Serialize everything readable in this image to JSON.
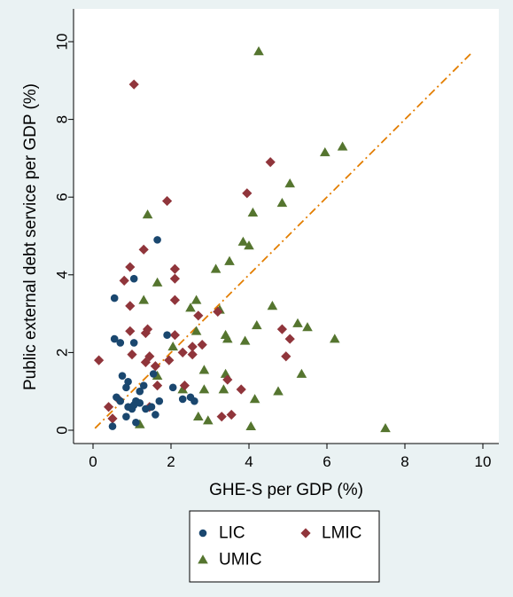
{
  "chart_data": {
    "type": "scatter",
    "title": "",
    "xlabel": "GHE-S per GDP (%)",
    "ylabel": "Public external debt service per GDP (%)",
    "xlim": [
      0,
      10
    ],
    "ylim": [
      0,
      10
    ],
    "xticks": [
      "0",
      "2",
      "4",
      "6",
      "8",
      "10"
    ],
    "yticks": [
      "0",
      "2",
      "4",
      "6",
      "8",
      "10"
    ],
    "grid": false,
    "legend_position": "bottom",
    "colors": {
      "page_background": "#eaf2f3",
      "plot_background": "#ffffff",
      "LIC": "#1a476f",
      "LMIC": "#90353b",
      "UMIC": "#55752f",
      "fit_line": "#e37e00"
    },
    "fit_line": {
      "x": [
        0.05,
        9.7
      ],
      "y": [
        0.05,
        9.7
      ],
      "style": "dash-dot"
    },
    "series": [
      {
        "name": "LIC",
        "marker": "circle",
        "points": [
          [
            0.5,
            0.1
          ],
          [
            0.6,
            0.85
          ],
          [
            0.7,
            0.75
          ],
          [
            0.55,
            2.35
          ],
          [
            0.7,
            2.25
          ],
          [
            0.55,
            3.4
          ],
          [
            0.75,
            1.4
          ],
          [
            0.9,
            1.25
          ],
          [
            0.85,
            1.1
          ],
          [
            0.85,
            0.35
          ],
          [
            0.9,
            0.6
          ],
          [
            1.0,
            0.55
          ],
          [
            1.05,
            0.65
          ],
          [
            1.1,
            0.2
          ],
          [
            1.1,
            0.75
          ],
          [
            1.2,
            0.7
          ],
          [
            1.05,
            2.25
          ],
          [
            1.05,
            3.9
          ],
          [
            1.2,
            1.0
          ],
          [
            1.3,
            1.15
          ],
          [
            1.35,
            0.55
          ],
          [
            1.5,
            0.6
          ],
          [
            1.55,
            1.45
          ],
          [
            1.6,
            0.4
          ],
          [
            1.7,
            0.75
          ],
          [
            1.65,
            4.9
          ],
          [
            1.9,
            2.45
          ],
          [
            2.05,
            1.1
          ],
          [
            2.3,
            0.8
          ],
          [
            2.5,
            0.85
          ],
          [
            2.6,
            0.75
          ]
        ]
      },
      {
        "name": "LMIC",
        "marker": "diamond",
        "points": [
          [
            0.15,
            1.8
          ],
          [
            0.4,
            0.6
          ],
          [
            0.5,
            0.3
          ],
          [
            0.65,
            0.8
          ],
          [
            0.8,
            3.85
          ],
          [
            0.95,
            4.2
          ],
          [
            0.95,
            3.2
          ],
          [
            0.95,
            2.55
          ],
          [
            1.0,
            1.95
          ],
          [
            1.0,
            0.6
          ],
          [
            1.05,
            8.9
          ],
          [
            1.3,
            4.65
          ],
          [
            1.35,
            1.75
          ],
          [
            1.35,
            2.5
          ],
          [
            1.4,
            2.6
          ],
          [
            1.45,
            1.9
          ],
          [
            1.45,
            0.6
          ],
          [
            1.6,
            1.65
          ],
          [
            1.65,
            1.15
          ],
          [
            1.9,
            5.9
          ],
          [
            1.95,
            1.8
          ],
          [
            2.1,
            4.15
          ],
          [
            2.1,
            3.9
          ],
          [
            2.1,
            2.45
          ],
          [
            2.1,
            3.35
          ],
          [
            2.3,
            2.0
          ],
          [
            2.35,
            1.15
          ],
          [
            2.55,
            1.95
          ],
          [
            2.55,
            2.15
          ],
          [
            2.7,
            2.95
          ],
          [
            2.8,
            2.2
          ],
          [
            3.2,
            3.05
          ],
          [
            3.3,
            0.35
          ],
          [
            3.45,
            1.3
          ],
          [
            3.55,
            0.4
          ],
          [
            3.8,
            1.05
          ],
          [
            3.95,
            6.1
          ],
          [
            4.55,
            6.9
          ],
          [
            4.85,
            2.6
          ],
          [
            4.95,
            1.9
          ],
          [
            5.05,
            2.35
          ]
        ]
      },
      {
        "name": "UMIC",
        "marker": "triangle",
        "points": [
          [
            1.2,
            0.15
          ],
          [
            1.3,
            3.35
          ],
          [
            1.4,
            5.55
          ],
          [
            1.65,
            3.8
          ],
          [
            1.65,
            1.4
          ],
          [
            2.05,
            2.15
          ],
          [
            2.3,
            1.05
          ],
          [
            2.5,
            3.15
          ],
          [
            2.65,
            3.35
          ],
          [
            2.65,
            2.55
          ],
          [
            2.7,
            0.35
          ],
          [
            2.85,
            1.55
          ],
          [
            2.85,
            1.05
          ],
          [
            2.95,
            0.25
          ],
          [
            3.15,
            4.15
          ],
          [
            3.25,
            3.1
          ],
          [
            3.35,
            1.05
          ],
          [
            3.4,
            1.45
          ],
          [
            3.4,
            2.45
          ],
          [
            3.45,
            2.35
          ],
          [
            3.5,
            4.35
          ],
          [
            3.85,
            4.85
          ],
          [
            3.9,
            2.3
          ],
          [
            4.0,
            4.75
          ],
          [
            4.05,
            0.1
          ],
          [
            4.1,
            5.6
          ],
          [
            4.15,
            0.8
          ],
          [
            4.2,
            2.7
          ],
          [
            4.25,
            9.75
          ],
          [
            4.6,
            3.2
          ],
          [
            4.75,
            1.0
          ],
          [
            4.85,
            5.85
          ],
          [
            5.05,
            6.35
          ],
          [
            5.25,
            2.75
          ],
          [
            5.35,
            1.45
          ],
          [
            5.5,
            2.65
          ],
          [
            5.95,
            7.15
          ],
          [
            6.2,
            2.35
          ],
          [
            6.4,
            7.3
          ],
          [
            7.5,
            0.05
          ]
        ]
      }
    ]
  }
}
